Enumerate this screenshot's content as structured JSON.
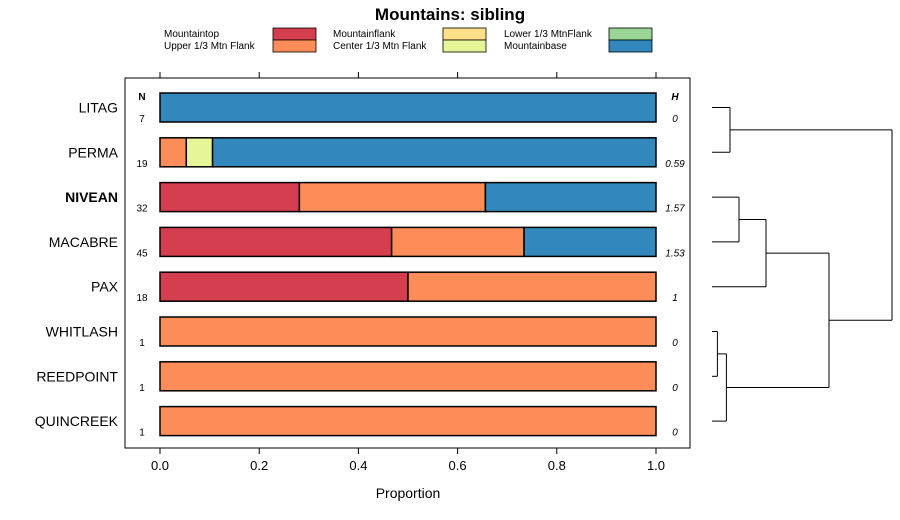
{
  "chart_data": {
    "type": "bar",
    "orientation": "horizontal-stacked",
    "title": "Mountains: sibling",
    "xlabel": "Proportion",
    "xlim": [
      0,
      1
    ],
    "xticks": [
      "0.0",
      "0.2",
      "0.4",
      "0.6",
      "0.8",
      "1.0"
    ],
    "n_header": "N",
    "h_header": "H",
    "legend": [
      {
        "name": "Mountaintop",
        "color": "#d53e4f"
      },
      {
        "name": "Upper 1/3 Mtn Flank",
        "color": "#fc8d59"
      },
      {
        "name": "Mountainflank",
        "color": "#fee08b"
      },
      {
        "name": "Center 1/3 Mtn Flank",
        "color": "#e6f598"
      },
      {
        "name": "Lower 1/3 MtnFlank",
        "color": "#99d594"
      },
      {
        "name": "Mountainbase",
        "color": "#3288bd"
      }
    ],
    "categories": [
      {
        "label": "LITAG",
        "bold": false,
        "n": "7",
        "h": "0",
        "segments": [
          {
            "name": "Mountainbase",
            "value": 1.0
          }
        ]
      },
      {
        "label": "PERMA",
        "bold": false,
        "n": "19",
        "h": "0.59",
        "segments": [
          {
            "name": "Upper 1/3 Mtn Flank",
            "value": 0.053
          },
          {
            "name": "Center 1/3 Mtn Flank",
            "value": 0.053
          },
          {
            "name": "Mountainbase",
            "value": 0.894
          }
        ]
      },
      {
        "label": "NIVEAN",
        "bold": true,
        "n": "32",
        "h": "1.57",
        "segments": [
          {
            "name": "Mountaintop",
            "value": 0.281
          },
          {
            "name": "Upper 1/3 Mtn Flank",
            "value": 0.375
          },
          {
            "name": "Mountainbase",
            "value": 0.344
          }
        ]
      },
      {
        "label": "MACABRE",
        "bold": false,
        "n": "45",
        "h": "1.53",
        "segments": [
          {
            "name": "Mountaintop",
            "value": 0.467
          },
          {
            "name": "Upper 1/3 Mtn Flank",
            "value": 0.267
          },
          {
            "name": "Mountainbase",
            "value": 0.266
          }
        ]
      },
      {
        "label": "PAX",
        "bold": false,
        "n": "18",
        "h": "1",
        "segments": [
          {
            "name": "Mountaintop",
            "value": 0.5
          },
          {
            "name": "Upper 1/3 Mtn Flank",
            "value": 0.5
          }
        ]
      },
      {
        "label": "WHITLASH",
        "bold": false,
        "n": "1",
        "h": "0",
        "segments": [
          {
            "name": "Upper 1/3 Mtn Flank",
            "value": 1.0
          }
        ]
      },
      {
        "label": "REEDPOINT",
        "bold": false,
        "n": "1",
        "h": "0",
        "segments": [
          {
            "name": "Upper 1/3 Mtn Flank",
            "value": 1.0
          }
        ]
      },
      {
        "label": "QUINCREEK",
        "bold": false,
        "n": "1",
        "h": "0",
        "segments": [
          {
            "name": "Upper 1/3 Mtn Flank",
            "value": 1.0
          }
        ]
      }
    ],
    "dendrogram": {
      "merges": [
        {
          "a": "r0",
          "b": "r1",
          "height": 0.1
        },
        {
          "a": "r2",
          "b": "r3",
          "height": 0.15
        },
        {
          "a": "m1",
          "b": "r4",
          "height": 0.3
        },
        {
          "a": "r5",
          "b": "r6",
          "height": 0.03
        },
        {
          "a": "m3",
          "b": "r7",
          "height": 0.08
        },
        {
          "a": "m2",
          "b": "m4",
          "height": 0.65
        },
        {
          "a": "m0",
          "b": "m5",
          "height": 1.0
        }
      ]
    }
  }
}
